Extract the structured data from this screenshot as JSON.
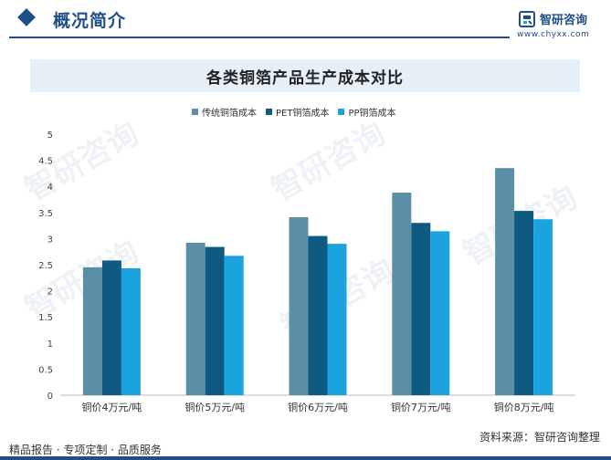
{
  "header": {
    "section_title": "概况简介",
    "brand_name": "智研咨询",
    "brand_url": "www.chyxx.com"
  },
  "footer": {
    "left_text": "精品报告 · 专项定制 · 品质服务",
    "source_text": "资料来源：智研咨询整理"
  },
  "watermark": "智研咨询",
  "colors": {
    "accent": "#1f4e89",
    "series": [
      "#5b8fa8",
      "#0e5a80",
      "#1aa3de"
    ]
  },
  "chart_data": {
    "type": "bar",
    "title": "各类铜箔产品生产成本对比",
    "categories": [
      "铜价4万元/吨",
      "铜价5万元/吨",
      "铜价6万元/吨",
      "铜价7万元/吨",
      "铜价8万元/吨"
    ],
    "series": [
      {
        "name": "传统铜箔成本",
        "values": [
          2.45,
          2.92,
          3.41,
          3.88,
          4.35
        ]
      },
      {
        "name": "PET铜箔成本",
        "values": [
          2.58,
          2.84,
          3.05,
          3.3,
          3.53
        ]
      },
      {
        "name": "PP铜箔成本",
        "values": [
          2.43,
          2.67,
          2.9,
          3.14,
          3.37
        ]
      }
    ],
    "ylim": [
      0,
      5
    ],
    "yticks": [
      "0",
      "0.5",
      "1",
      "1.5",
      "2",
      "2.5",
      "3",
      "3.5",
      "4",
      "4.5",
      "5"
    ],
    "xlabel": "",
    "ylabel": "",
    "legend_position": "top-center",
    "grid": false
  }
}
